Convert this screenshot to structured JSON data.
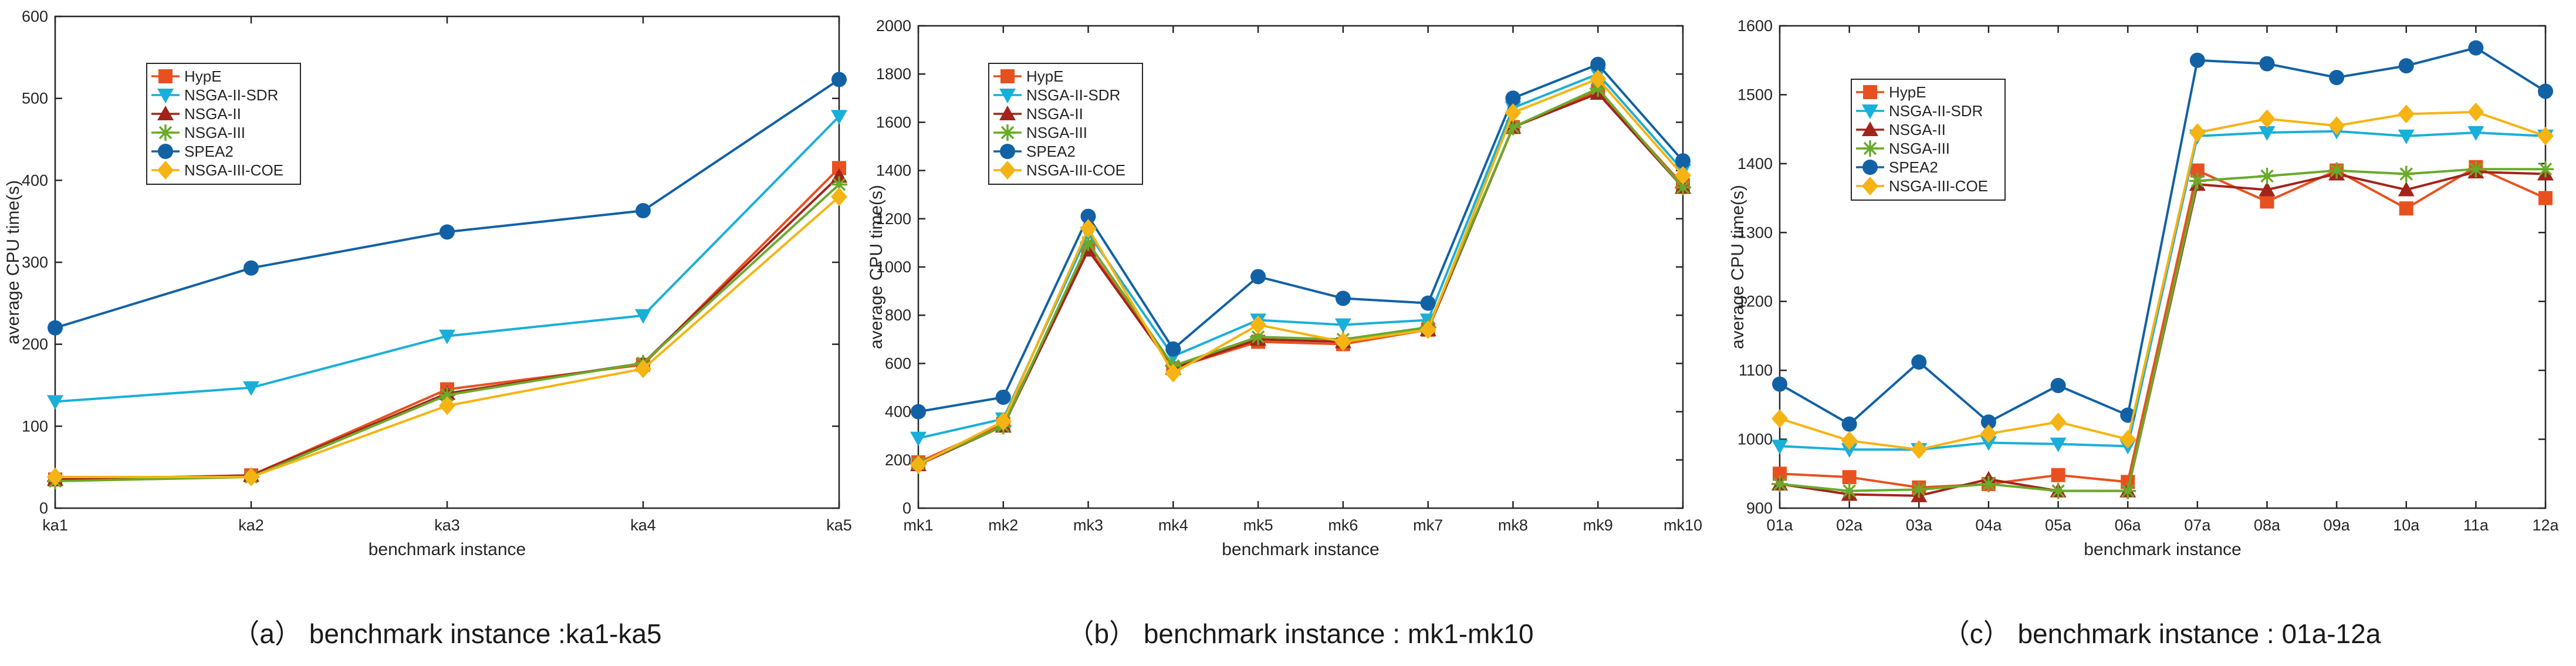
{
  "chart_data": [
    {
      "type": "line",
      "caption": "（a）  benchmark instance :ka1-ka5",
      "xlabel": "benchmark instance",
      "ylabel": "average CPU time(s)",
      "categories": [
        "ka1",
        "ka2",
        "ka3",
        "ka4",
        "ka5"
      ],
      "ylim": [
        0,
        600
      ],
      "yticks": [
        0,
        100,
        200,
        300,
        400,
        500,
        600
      ],
      "legend_position": "upper-left",
      "series": [
        {
          "name": "HypE",
          "color": "#e8511f",
          "marker": "square",
          "values": [
            35,
            40,
            145,
            175,
            415
          ]
        },
        {
          "name": "NSGA-II-SDR",
          "color": "#1aafd9",
          "marker": "triangle-down",
          "values": [
            130,
            147,
            210,
            235,
            478
          ]
        },
        {
          "name": "NSGA-II",
          "color": "#a3241a",
          "marker": "triangle-up",
          "values": [
            35,
            40,
            140,
            177,
            405
          ]
        },
        {
          "name": "NSGA-III",
          "color": "#6aaa2a",
          "marker": "asterisk",
          "values": [
            33,
            38,
            138,
            177,
            395
          ]
        },
        {
          "name": "SPEA2",
          "color": "#1261a5",
          "marker": "circle",
          "values": [
            220,
            293,
            337,
            363,
            523
          ]
        },
        {
          "name": "NSGA-III-COE",
          "color": "#f5b413",
          "marker": "diamond",
          "values": [
            38,
            38,
            125,
            170,
            380
          ]
        }
      ]
    },
    {
      "type": "line",
      "caption": "（b）  benchmark instance : mk1-mk10",
      "xlabel": "benchmark instance",
      "ylabel": "average CPU time(s)",
      "categories": [
        "mk1",
        "mk2",
        "mk3",
        "mk4",
        "mk5",
        "mk6",
        "mk7",
        "mk8",
        "mk9",
        "mk10"
      ],
      "ylim": [
        0,
        2000
      ],
      "yticks": [
        0,
        200,
        400,
        600,
        800,
        1000,
        1200,
        1400,
        1600,
        1800,
        2000
      ],
      "legend_position": "upper-left",
      "series": [
        {
          "name": "HypE",
          "color": "#e8511f",
          "marker": "square",
          "values": [
            190,
            350,
            1080,
            580,
            690,
            680,
            740,
            1580,
            1730,
            1340
          ]
        },
        {
          "name": "NSGA-II-SDR",
          "color": "#1aafd9",
          "marker": "triangle-down",
          "values": [
            290,
            370,
            1140,
            630,
            780,
            760,
            780,
            1660,
            1800,
            1400
          ]
        },
        {
          "name": "NSGA-II",
          "color": "#a3241a",
          "marker": "triangle-up",
          "values": [
            180,
            340,
            1070,
            580,
            700,
            690,
            740,
            1580,
            1720,
            1330
          ]
        },
        {
          "name": "NSGA-III",
          "color": "#6aaa2a",
          "marker": "asterisk",
          "values": [
            185,
            340,
            1100,
            590,
            710,
            700,
            750,
            1580,
            1740,
            1330
          ]
        },
        {
          "name": "SPEA2",
          "color": "#1261a5",
          "marker": "circle",
          "values": [
            400,
            460,
            1210,
            660,
            960,
            870,
            850,
            1700,
            1840,
            1440
          ]
        },
        {
          "name": "NSGA-III-COE",
          "color": "#f5b413",
          "marker": "diamond",
          "values": [
            180,
            360,
            1160,
            560,
            760,
            690,
            740,
            1640,
            1780,
            1380
          ]
        }
      ]
    },
    {
      "type": "line",
      "caption": "（c）  benchmark instance : 01a-12a",
      "xlabel": "benchmark instance",
      "ylabel": "average CPU time(s)",
      "categories": [
        "01a",
        "02a",
        "03a",
        "04a",
        "05a",
        "06a",
        "07a",
        "08a",
        "09a",
        "10a",
        "11a",
        "12a"
      ],
      "ylim": [
        900,
        1600
      ],
      "yticks": [
        900,
        1000,
        1100,
        1200,
        1300,
        1400,
        1500,
        1600
      ],
      "legend_position": "upper-left",
      "series": [
        {
          "name": "HypE",
          "color": "#e8511f",
          "marker": "square",
          "values": [
            950,
            945,
            930,
            935,
            948,
            938,
            1390,
            1345,
            1390,
            1335,
            1395,
            1350
          ]
        },
        {
          "name": "NSGA-II-SDR",
          "color": "#1aafd9",
          "marker": "triangle-down",
          "values": [
            990,
            985,
            985,
            995,
            993,
            990,
            1440,
            1445,
            1447,
            1440,
            1445,
            1440
          ]
        },
        {
          "name": "NSGA-II",
          "color": "#a3241a",
          "marker": "triangle-up",
          "values": [
            935,
            920,
            918,
            942,
            925,
            925,
            1370,
            1362,
            1385,
            1362,
            1388,
            1385
          ]
        },
        {
          "name": "NSGA-III",
          "color": "#6aaa2a",
          "marker": "asterisk",
          "values": [
            935,
            925,
            927,
            935,
            925,
            925,
            1375,
            1382,
            1390,
            1385,
            1392,
            1392
          ]
        },
        {
          "name": "SPEA2",
          "color": "#1261a5",
          "marker": "circle",
          "values": [
            1080,
            1022,
            1112,
            1025,
            1078,
            1035,
            1550,
            1545,
            1525,
            1542,
            1568,
            1505
          ]
        },
        {
          "name": "NSGA-III-COE",
          "color": "#f5b413",
          "marker": "diamond",
          "values": [
            1030,
            998,
            985,
            1008,
            1025,
            1000,
            1445,
            1465,
            1455,
            1472,
            1475,
            1440
          ]
        }
      ]
    }
  ]
}
